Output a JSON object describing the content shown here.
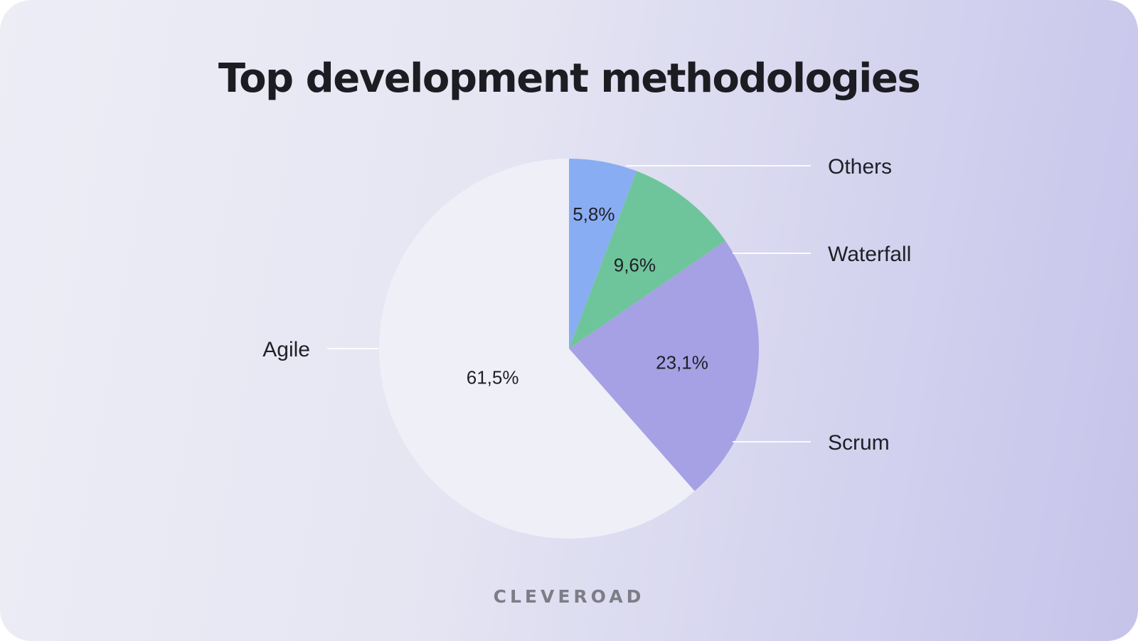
{
  "chart_data": {
    "type": "pie",
    "title": "Top development methodologies",
    "categories": [
      "Others",
      "Waterfall",
      "Scrum",
      "Agile"
    ],
    "values": [
      5.8,
      9.6,
      23.1,
      61.5
    ],
    "value_labels": [
      "5,8%",
      "9,6%",
      "23,1%",
      "61,5%"
    ],
    "colors": [
      "#89adf2",
      "#6fc59b",
      "#a6a1e4",
      "#efeff8"
    ],
    "start_angle": "12 o'clock",
    "direction": "clockwise",
    "legend": "callout labels"
  },
  "brand": "CLEVEROAD"
}
